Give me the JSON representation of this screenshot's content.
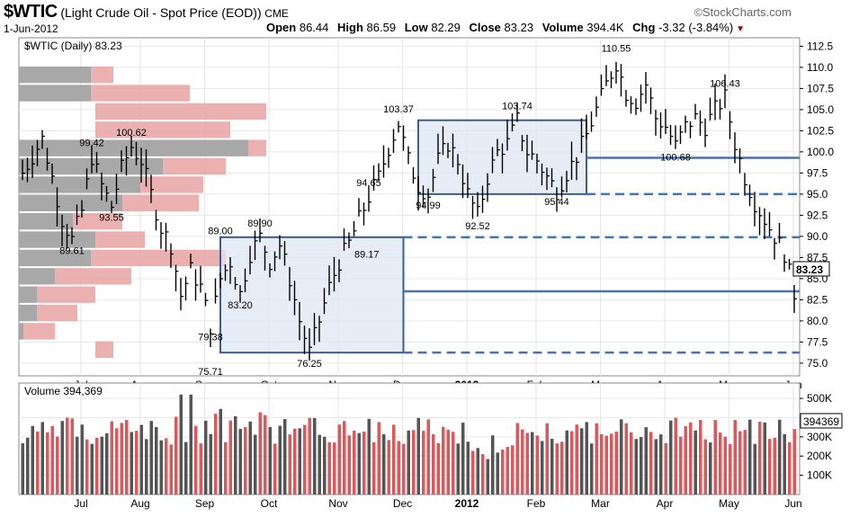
{
  "header": {
    "symbol": "$WTIC",
    "description": "(Light Crude Oil - Spot Price (EOD))",
    "exchange": "CME",
    "date": "1-Jun-2012",
    "open_label": "Open",
    "open": "86.44",
    "high_label": "High",
    "high": "86.59",
    "low_label": "Low",
    "low": "82.29",
    "close_label": "Close",
    "close": "83.23",
    "volume_label": "Volume",
    "volume": "394.4K",
    "chg_label": "Chg",
    "chg": "-3.32 (-3.84%)",
    "brand": "StockCharts.com",
    "brand_mark": "©"
  },
  "chart_data": [
    {
      "type": "candlestick",
      "legend": "$WTIC (Daily) 83.23",
      "x_tick_labels": [
        "Jul",
        "Aug",
        "Sep",
        "Oct",
        "Nov",
        "Dec",
        "2012",
        "Feb",
        "Mar",
        "Apr",
        "May",
        "Jun"
      ],
      "y_tick_labels": [
        "112.5",
        "110.0",
        "107.5",
        "105.0",
        "102.5",
        "100.0",
        "97.5",
        "95.0",
        "92.5",
        "90.0",
        "87.5",
        "85.0",
        "82.5",
        "80.0",
        "77.5",
        "75.0"
      ],
      "ylim": [
        73.5,
        113.5
      ],
      "last_price_label": "83.23",
      "price_path": [
        [
          0,
          97.5
        ],
        [
          2,
          99.5
        ],
        [
          4,
          101.5
        ],
        [
          6,
          97.0
        ],
        [
          8,
          92.0
        ],
        [
          10,
          89.61
        ],
        [
          12,
          93.0
        ],
        [
          14,
          99.42
        ],
        [
          16,
          96.0
        ],
        [
          18,
          93.55
        ],
        [
          20,
          98.0
        ],
        [
          22,
          100.62
        ],
        [
          24,
          99.0
        ],
        [
          26,
          95.0
        ],
        [
          28,
          91.0
        ],
        [
          30,
          89.0
        ],
        [
          32,
          83.0
        ],
        [
          34,
          86.0
        ],
        [
          36,
          84.0
        ],
        [
          38,
          79.38
        ],
        [
          40,
          85.0
        ],
        [
          42,
          87.0
        ],
        [
          44,
          83.2
        ],
        [
          46,
          88.0
        ],
        [
          48,
          89.9
        ],
        [
          50,
          87.0
        ],
        [
          52,
          89.0
        ],
        [
          54,
          85.0
        ],
        [
          56,
          80.0
        ],
        [
          58,
          76.25
        ],
        [
          60,
          80.0
        ],
        [
          62,
          84.0
        ],
        [
          64,
          87.0
        ],
        [
          66,
          89.17
        ],
        [
          68,
          92.0
        ],
        [
          70,
          94.65
        ],
        [
          72,
          97.0
        ],
        [
          74,
          100.5
        ],
        [
          76,
          103.37
        ],
        [
          78,
          99.0
        ],
        [
          80,
          96.0
        ],
        [
          82,
          94.99
        ],
        [
          84,
          99.0
        ],
        [
          86,
          101.0
        ],
        [
          88,
          99.0
        ],
        [
          90,
          95.0
        ],
        [
          92,
          92.52
        ],
        [
          94,
          97.0
        ],
        [
          96,
          100.0
        ],
        [
          98,
          101.0
        ],
        [
          100,
          103.74
        ],
        [
          102,
          100.0
        ],
        [
          104,
          99.0
        ],
        [
          106,
          97.0
        ],
        [
          108,
          95.44
        ],
        [
          110,
          97.5
        ],
        [
          112,
          99.5
        ],
        [
          114,
          102.0
        ],
        [
          116,
          105.0
        ],
        [
          118,
          108.0
        ],
        [
          120,
          110.55
        ],
        [
          122,
          107.0
        ],
        [
          124,
          106.0
        ],
        [
          126,
          108.0
        ],
        [
          128,
          104.0
        ],
        [
          130,
          103.0
        ],
        [
          132,
          100.68
        ],
        [
          134,
          103.0
        ],
        [
          136,
          104.0
        ],
        [
          138,
          103.0
        ],
        [
          140,
          105.0
        ],
        [
          142,
          106.43
        ],
        [
          144,
          101.0
        ],
        [
          146,
          97.0
        ],
        [
          148,
          94.0
        ],
        [
          150,
          92.0
        ],
        [
          152,
          90.0
        ],
        [
          154,
          88.0
        ],
        [
          156,
          83.23
        ]
      ],
      "annotations": [
        "99.42",
        "100.62",
        "93.55",
        "89.61",
        "89.00",
        "89.90",
        "79.38",
        "83.20",
        "75.71",
        "76.25",
        "89.17",
        "94.65",
        "103.37",
        "94.99",
        "92.52",
        "103.74",
        "95.44",
        "110.55",
        "100.68",
        "106.43"
      ],
      "shaded_boxes": [
        {
          "x": [
            40,
            77
          ],
          "y": [
            76.25,
            89.9
          ]
        },
        {
          "x": [
            80,
            114
          ],
          "y": [
            95.0,
            103.74
          ]
        }
      ],
      "levels_solid": [
        99.3,
        83.5
      ],
      "levels_dashed": [
        95.0,
        89.9,
        76.25
      ],
      "volume_by_price_rows": 16
    },
    {
      "type": "bar",
      "legend": "Volume 394,369",
      "y_tick_labels": [
        "500K",
        "400K",
        "300K",
        "200K",
        "100K"
      ],
      "ylim": [
        0,
        580000
      ],
      "last_value_label": "394369",
      "x_tick_labels": [
        "Jul",
        "Aug",
        "Sep",
        "Oct",
        "Nov",
        "Dec",
        "2012",
        "Feb",
        "Mar",
        "Apr",
        "May",
        "Jun"
      ]
    }
  ],
  "colors": {
    "up": "#d9595d",
    "down": "#555555",
    "box": "#3d5e8e",
    "boxfill": "#dfe7f3",
    "vbp_gray": "#a8a8a8",
    "vbp_red": "#e7a3a3"
  }
}
